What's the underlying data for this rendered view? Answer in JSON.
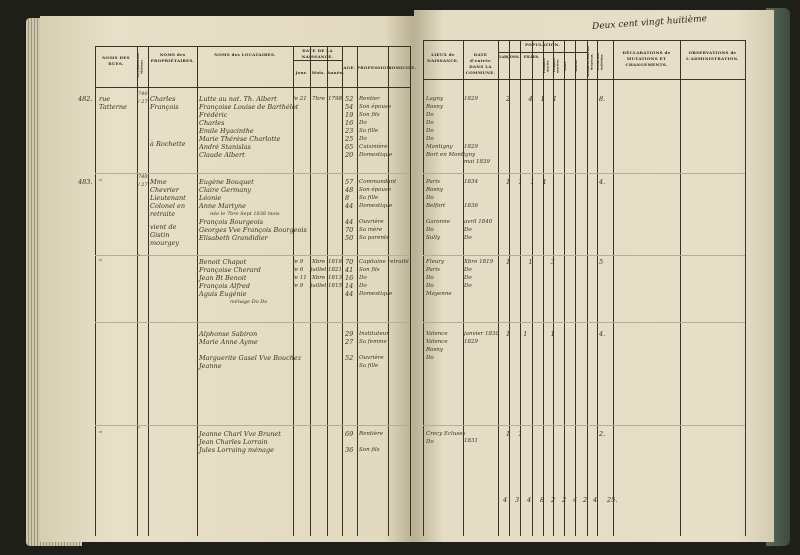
{
  "header": {
    "top_annotation": "Deux cent vingt huitième",
    "left_columns": [
      "NOMS DES RUES.",
      "NUMÉROS des Maisons.",
      "NOMS des PROPRIÉTAIRES.",
      "NOMS des LOCATAIRES.",
      "DATE DE LA NAISSANCE.",
      "Jour.",
      "Mois.",
      "Année.",
      "AGE.",
      "PROFESSION.",
      "DOMICILE."
    ],
    "right_columns": [
      "LIEUX de NAISSANCE.",
      "DATE d'entrée DANS LA COMMUNE.",
      "POPULATION.",
      "GARÇONS.",
      "FILLES.",
      "Hommes mariés.",
      "Femmes mariées.",
      "Veufs.",
      "Veuves.",
      "Militaires sous les drapeaux.",
      "TOTAL des individus.",
      "DÉCLARATIONS de MUTATIONS ET CHANGEMENTS.",
      "OBSERVATIONS de L'ADMINISTRATION."
    ]
  },
  "entries": [
    {
      "num": "482.",
      "street": "rue Tatterne",
      "house": "740 / 27",
      "owner": "Charles François",
      "owner_note": "à Rochette",
      "tenants": [
        "Lutte au nat. Th. Albert",
        "Françoise Louise de Barthélot",
        "Frédéric",
        "Charles",
        "Emile Hyacinthe",
        "Marie Thérèse Charlotte",
        "André Stanislas",
        "Claude Albert"
      ],
      "birth": "le 21  7bre  1798",
      "ages": [
        "52",
        "54",
        "19",
        "16",
        "23",
        "25",
        "65",
        "20"
      ],
      "professions": [
        "Rentier",
        "Son épouse",
        "Son fils",
        "Do",
        "Sa fille",
        "Do",
        "Cuisinière",
        "Domestique"
      ],
      "places": [
        "Lagny",
        "Rosny",
        "Do",
        "Do",
        "Do",
        "Do",
        "Montigny",
        "Bort en Montigny"
      ],
      "entry_dates": [
        "1829",
        "",
        "",
        "",
        "",
        "",
        "1829",
        "mai 1839"
      ],
      "population": "2   4 1 1",
      "total": "8."
    },
    {
      "num": "483.",
      "street": "\"",
      "house": "740 / 27",
      "owner": "Mme Chevrier Lieutenant Colonel en retraite",
      "owner_note": "vient de Gistin mourgey",
      "tenants": [
        "Eugène Bouquet",
        "Claire Germany",
        "Léonie",
        "Anne Martyne",
        "",
        "François Bourgeois",
        "Georges Vve François Bourgeois",
        "Elisabeth Grandidier"
      ],
      "tenant_note": "née le 7bre Sept 1838 mois",
      "birth": "",
      "ages": [
        "57",
        "48",
        "8",
        "44",
        "",
        "44",
        "70",
        "50"
      ],
      "professions": [
        "Commandant",
        "Son épouse",
        "Sa fille",
        "Domestique",
        "",
        "Ouvrière",
        "Sa mère",
        "Sa parente"
      ],
      "places": [
        "Paris",
        "Rosny",
        "Do",
        "Belfort",
        "",
        "Garonne",
        "Do",
        "Sully"
      ],
      "entry_dates": [
        "1834",
        "",
        "",
        "1836",
        "",
        "avril 1840",
        "Do",
        "Do"
      ],
      "population": "1 1 1 1",
      "total": "4."
    },
    {
      "num": "",
      "street": "\"",
      "house": "\"",
      "owner": "",
      "tenants": [
        "Benoit Chapot",
        "Françoise Cherard",
        "Jean Bt Benoit",
        "François Alfred",
        "Aguis Eugénie"
      ],
      "tenant_note": "ménage Do Do",
      "birth_list": [
        "le 9  Xbre  1816",
        "le 6 juillet 1821",
        "le 11  Xbre  1813",
        "le 9 juillet 1815"
      ],
      "ages": [
        "70",
        "41",
        "16",
        "14",
        "44"
      ],
      "professions": [
        "Capitaine retraité",
        "Son fils",
        "Do",
        "Do",
        "Domestique"
      ],
      "places": [
        "Fleury",
        "Paris",
        "Do",
        "Do",
        "Mayenne"
      ],
      "entry_dates": [
        "Xbre 1819",
        "Do",
        "Do",
        "Do",
        ""
      ],
      "population": "1   1   3",
      "total": "5"
    },
    {
      "num": "",
      "street": "",
      "house": "",
      "owner": "",
      "tenants": [
        "Alphonse Sabiron",
        "Marie Anne Ayme",
        "",
        "Marguerite Gasel Vve Bouchez",
        "Jeanne"
      ],
      "ages": [
        "29",
        "27",
        "",
        "52",
        ""
      ],
      "professions": [
        "Instituteur",
        "Sa femme",
        "",
        "Ouvrière",
        "Sa fille"
      ],
      "places": [
        "Valence",
        "Valence",
        "Rosny",
        "Do"
      ],
      "entry_dates": [
        "janvier 1830",
        "1829"
      ],
      "population": "1  1    1",
      "total": "4."
    },
    {
      "num": "",
      "street": "\"",
      "house": "\"",
      "owner": "",
      "tenants": [
        "Jeanne Charl Vve Brunet",
        "Jean Charles Lorrain",
        "Jules Lorraing ménage"
      ],
      "ages": [
        "69",
        "",
        "36"
      ],
      "professions": [
        "Rentière",
        "",
        "Son fils"
      ],
      "places": [
        "Crecy Ecluses",
        "Do"
      ],
      "entry_dates": [
        "1831"
      ],
      "population": "1 1",
      "total": "2."
    }
  ],
  "totals": [
    "4",
    "3",
    "4",
    "8",
    "2",
    "2",
    "4",
    "2",
    "4",
    "25."
  ]
}
